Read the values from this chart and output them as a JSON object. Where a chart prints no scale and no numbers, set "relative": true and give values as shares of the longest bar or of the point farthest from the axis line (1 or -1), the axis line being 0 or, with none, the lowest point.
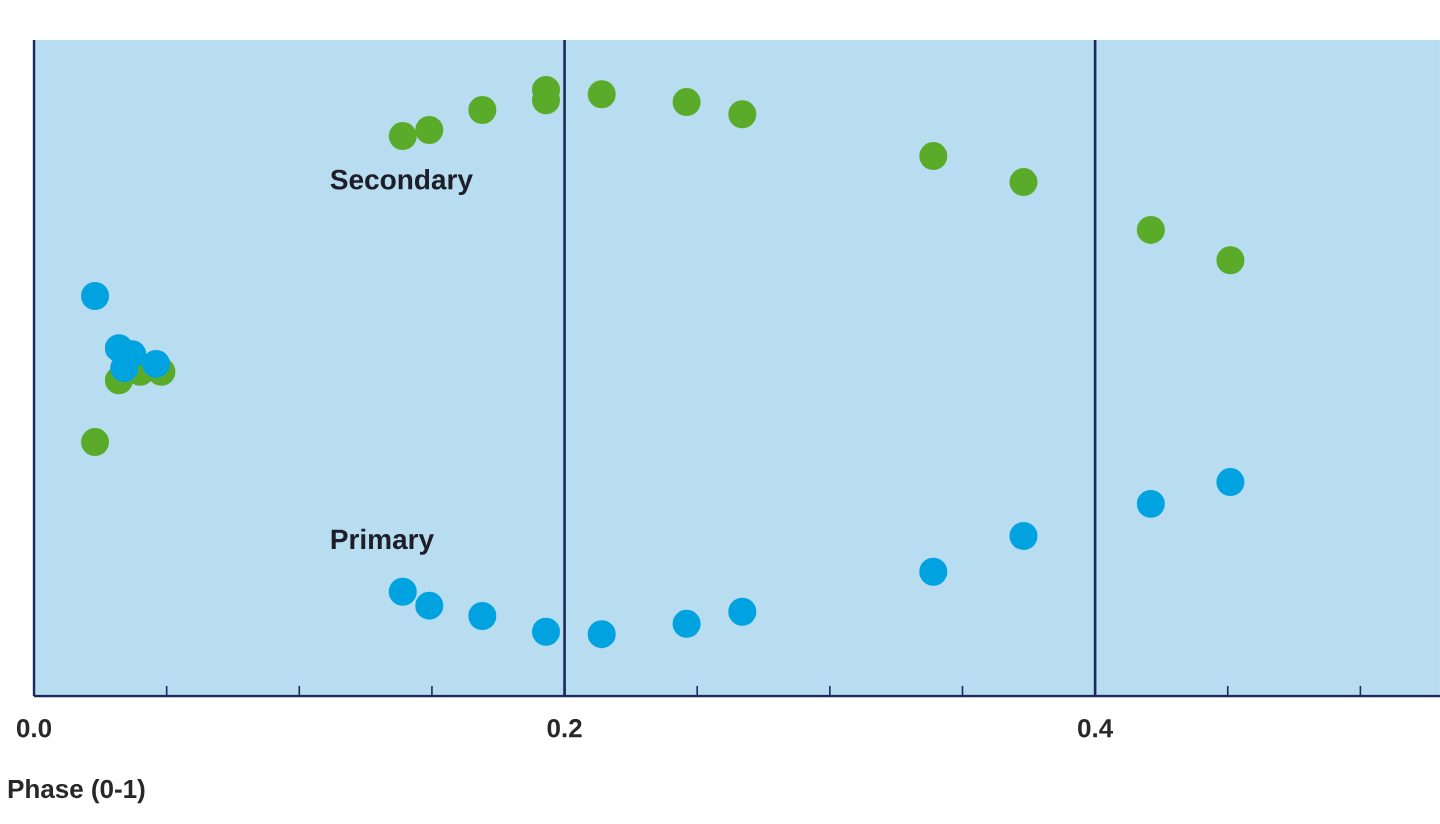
{
  "chart_data": {
    "type": "scatter",
    "xlabel": "Phase (0-1)",
    "relative": true,
    "marker": "circle",
    "xlim": [
      0,
      0.53
    ],
    "xticks": [
      {
        "value": 0,
        "label": "0.0"
      },
      {
        "value": 0.05,
        "label": null
      },
      {
        "value": 0.1,
        "label": null
      },
      {
        "value": 0.15,
        "label": null
      },
      0.2,
      {
        "value": 0.25,
        "label": null
      },
      {
        "value": 0.3,
        "label": null
      },
      {
        "value": 0.35,
        "label": null
      },
      0.4,
      {
        "value": 0.45,
        "label": null
      },
      {
        "value": 0.5,
        "label": null
      }
    ],
    "ref_lines": [
      {
        "axis": "x",
        "value": 0.2,
        "color": "#1a2a5a"
      },
      {
        "axis": "x",
        "value": 0.4,
        "color": "#1a2a5a"
      }
    ],
    "series": [
      {
        "name": "Secondary",
        "color": "#5aab2a",
        "x": [
          0.023,
          0.032,
          0.04,
          0.048,
          0.139,
          0.149,
          0.169,
          0.193,
          0.193,
          0.214,
          0.246,
          0.267,
          0.339,
          0.373,
          0.421,
          0.451
        ],
        "values": [
          0.419,
          0.521,
          0.535,
          0.535,
          0.924,
          0.934,
          0.967,
          1.0,
          0.983,
          0.993,
          0.98,
          0.96,
          0.891,
          0.848,
          0.769,
          0.719
        ]
      },
      {
        "name": "Primary",
        "color": "#00a3e0",
        "x": [
          0.023,
          0.032,
          0.037,
          0.046,
          0.034,
          0.139,
          0.149,
          0.169,
          0.193,
          0.214,
          0.246,
          0.267,
          0.339,
          0.373,
          0.421,
          0.451
        ],
        "values": [
          0.66,
          0.574,
          0.564,
          0.548,
          0.541,
          0.172,
          0.149,
          0.132,
          0.106,
          0.102,
          0.119,
          0.139,
          0.205,
          0.264,
          0.317,
          0.353
        ]
      }
    ]
  }
}
